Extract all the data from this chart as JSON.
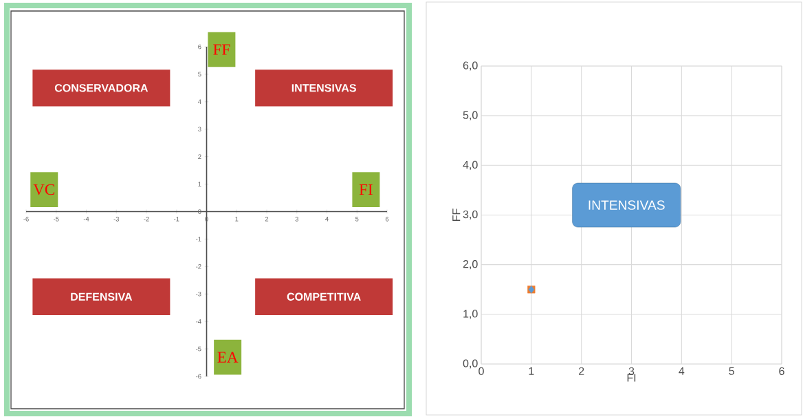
{
  "chart_data": [
    {
      "type": "scatter",
      "xlim": [
        -6,
        6
      ],
      "ylim": [
        -6,
        6
      ],
      "xticks": [
        -6,
        -5,
        -4,
        -3,
        -2,
        -1,
        0,
        1,
        2,
        3,
        4,
        5,
        6
      ],
      "yticks": [
        -6,
        -5,
        -4,
        -3,
        -2,
        -1,
        0,
        1,
        2,
        3,
        4,
        5,
        6
      ],
      "annotations": [
        "CONSERVADORA",
        "INTENSIVAS",
        "DEFENSIVA",
        "COMPETITIVA",
        "FF",
        "VC",
        "FI",
        "EA"
      ]
    },
    {
      "type": "scatter",
      "xlabel": "FI",
      "ylabel": "FF",
      "xlim": [
        0,
        6
      ],
      "ylim": [
        0,
        6
      ],
      "xticks": [
        0,
        1,
        2,
        3,
        4,
        5,
        6
      ],
      "yticks": [
        {
          "value": 0,
          "label": "0,0"
        },
        {
          "value": 1,
          "label": "1,0"
        },
        {
          "value": 2,
          "label": "2,0"
        },
        {
          "value": 3,
          "label": "3,0"
        },
        {
          "value": 4,
          "label": "4,0"
        },
        {
          "value": 5,
          "label": "5,0"
        },
        {
          "value": 6,
          "label": "6,0"
        }
      ],
      "grid": true,
      "series": [
        {
          "color": "#ed7d31",
          "marker": "square",
          "x": [
            1
          ],
          "values": [
            1.5
          ]
        },
        {
          "color": "#5b9bd5",
          "marker": "diamond",
          "x": [
            1
          ],
          "values": [
            1.5
          ]
        }
      ],
      "annotations": [
        "INTENSIVAS"
      ]
    }
  ]
}
